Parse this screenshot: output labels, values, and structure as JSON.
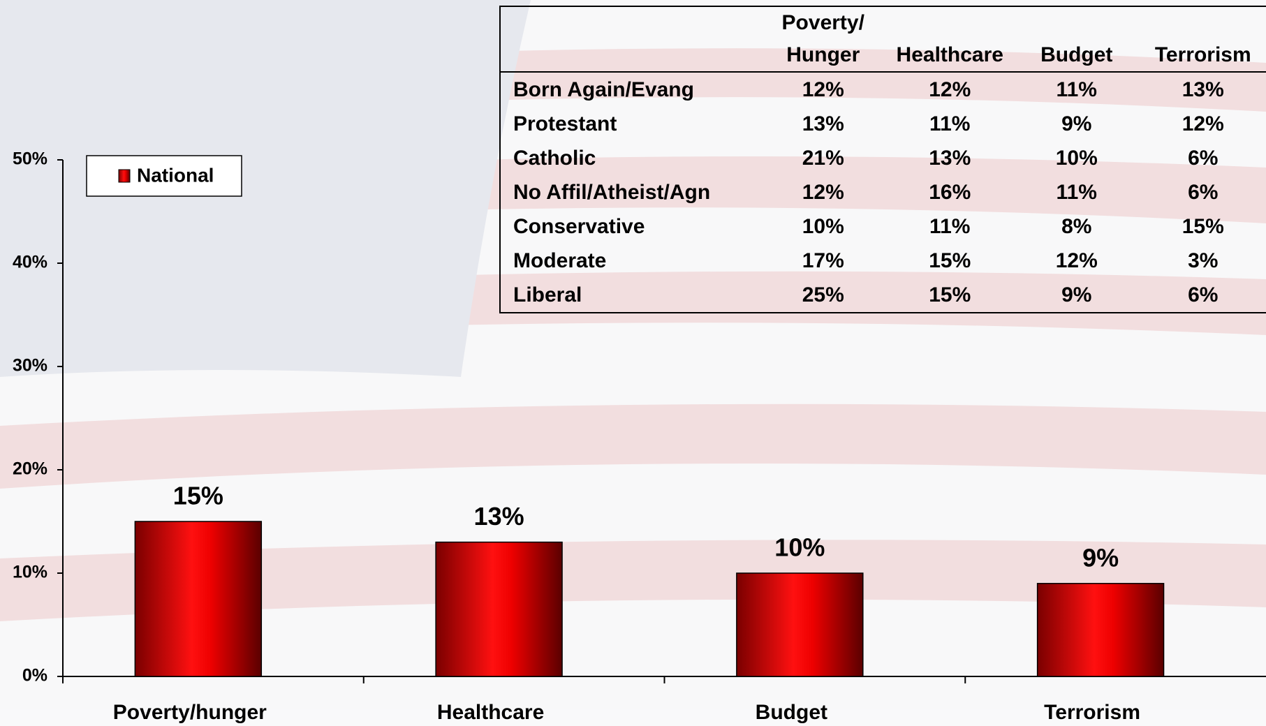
{
  "chart_data": {
    "type": "bar",
    "categories": [
      "Poverty/hunger",
      "Healthcare",
      "Budget",
      "Terrorism"
    ],
    "series": [
      {
        "name": "National",
        "color": "#e00000",
        "values": [
          15,
          13,
          10,
          9
        ],
        "value_labels": [
          "15%",
          "13%",
          "10%",
          "9%"
        ]
      }
    ],
    "ylim": [
      0,
      50
    ],
    "yticks": [
      {
        "value": 0,
        "label": "0%"
      },
      {
        "value": 10,
        "label": "10%"
      },
      {
        "value": 20,
        "label": "20%"
      },
      {
        "value": 30,
        "label": "30%"
      },
      {
        "value": 40,
        "label": "40%"
      },
      {
        "value": 50,
        "label": "50%"
      }
    ],
    "grid": false,
    "legend": "upper left"
  },
  "table": {
    "columns": [
      "Poverty/\nHunger",
      "Healthcare",
      "Budget",
      "Terrorism"
    ],
    "rows": [
      [
        "Born Again/Evang",
        "12%",
        "12%",
        "11%",
        "13%"
      ],
      [
        "Protestant",
        "13%",
        "11%",
        "9%",
        "12%"
      ],
      [
        "Catholic",
        "21%",
        "13%",
        "10%",
        "6%"
      ],
      [
        "No Affil/Atheist/Agn",
        "12%",
        "16%",
        "11%",
        "6%"
      ],
      [
        "Conservative",
        "10%",
        "11%",
        "8%",
        "15%"
      ],
      [
        "Moderate",
        "17%",
        "15%",
        "12%",
        "3%"
      ],
      [
        "Liberal",
        "25%",
        "15%",
        "9%",
        "6%"
      ]
    ]
  }
}
